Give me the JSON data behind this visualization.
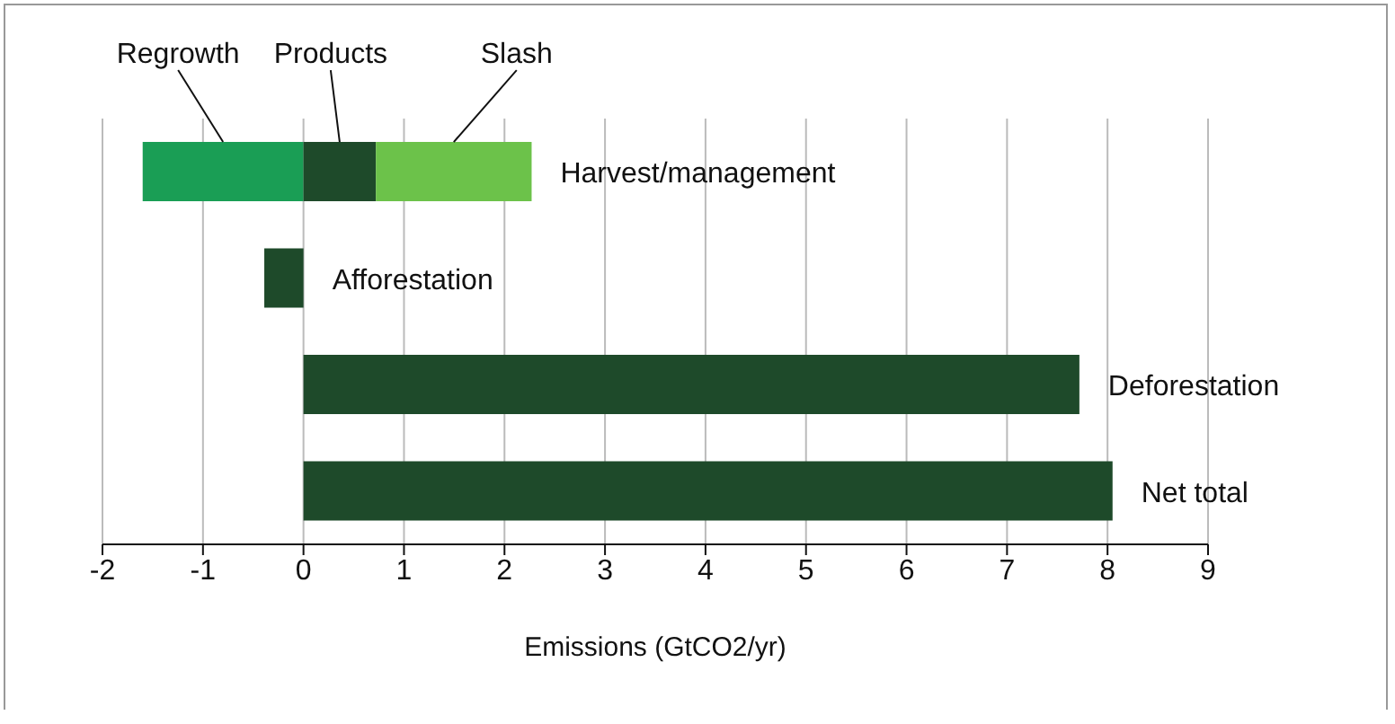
{
  "chart_data": {
    "type": "bar",
    "orientation": "horizontal",
    "stacked": true,
    "xlabel": "Emissions (GtCO2/yr)",
    "categories": [
      "Harvest/management",
      "Afforestation",
      "Deforestation",
      "Net total"
    ],
    "series": [
      {
        "name": "Regrowth",
        "color": "#1a9e55",
        "values": [
          -1.6,
          null,
          null,
          null
        ]
      },
      {
        "name": "Products",
        "color": "#1e4a2a",
        "values": [
          0.72,
          null,
          null,
          null
        ]
      },
      {
        "name": "Slash",
        "color": "#6cc24a",
        "values": [
          1.55,
          null,
          null,
          null
        ]
      },
      {
        "color": "#1e4a2a",
        "values": [
          null,
          -0.39,
          7.72,
          8.05
        ]
      }
    ],
    "xlim": [
      -2,
      9
    ],
    "xticks": [
      -2,
      -1,
      0,
      1,
      2,
      3,
      4,
      5,
      6,
      7,
      8,
      9
    ],
    "grid": "x",
    "legend": "top left"
  }
}
